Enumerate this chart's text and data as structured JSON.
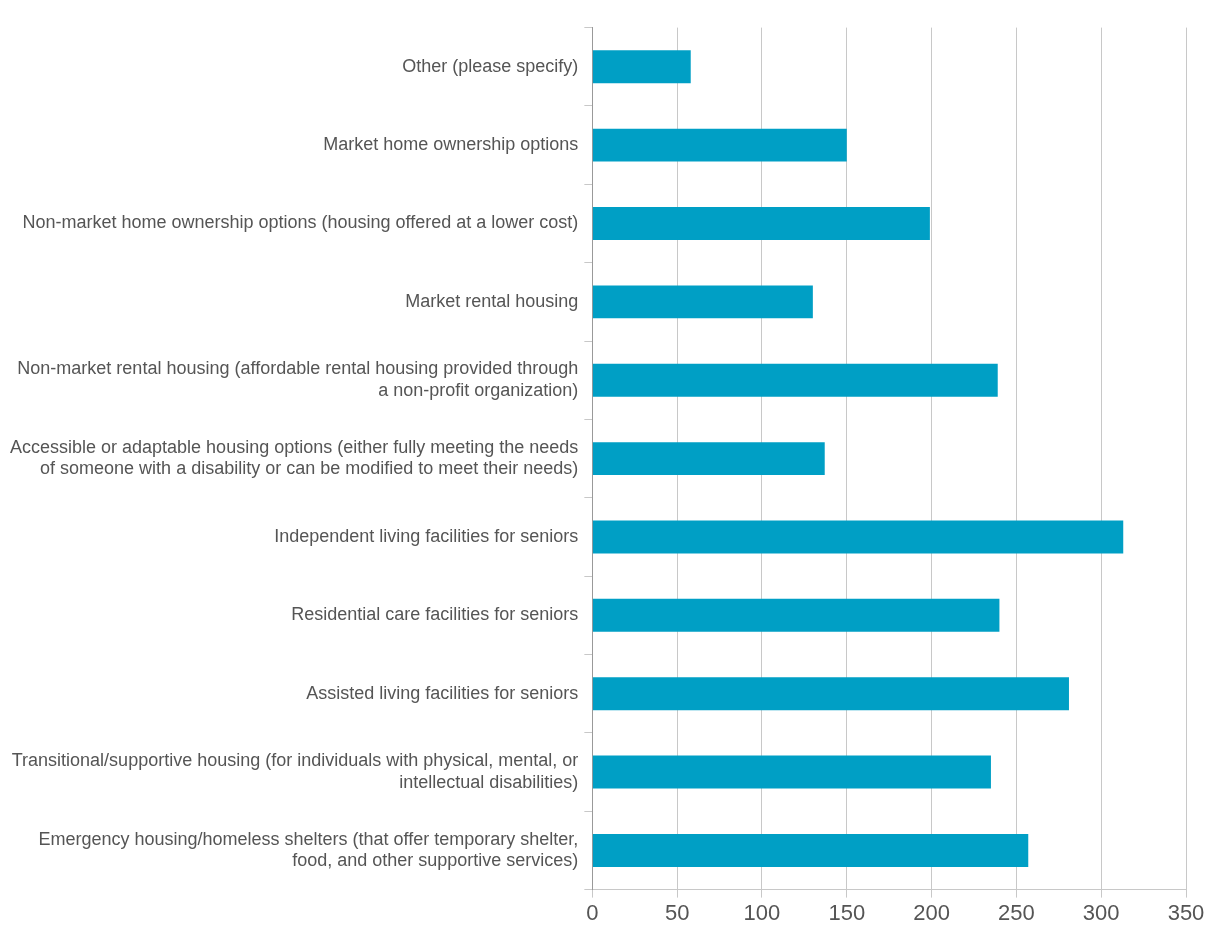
{
  "chart_data": {
    "type": "bar",
    "orientation": "horizontal",
    "categories": [
      "Other (please specify)",
      "Market home ownership options",
      "Non-market home ownership options (housing offered at a lower cost)",
      "Market rental housing",
      "Non-market rental housing (affordable rental housing provided through a non-profit organization)",
      "Accessible or adaptable housing options (either fully meeting the needs of someone with a disability or can be modified to meet their needs)",
      "Independent living facilities for seniors",
      "Residential care facilities for seniors",
      "Assisted living facilities for seniors",
      "Transitional/supportive housing (for individuals with physical, mental, or intellectual disabilities)",
      "Emergency housing/homeless shelters (that offer temporary shelter, food, and other supportive services)"
    ],
    "values": [
      58,
      150,
      199,
      130,
      239,
      137,
      313,
      240,
      281,
      235,
      257
    ],
    "color": "#009fc5",
    "xlim": [
      0,
      350
    ],
    "xticks": [
      0,
      50,
      100,
      150,
      200,
      250,
      300,
      350
    ],
    "grid": "x",
    "legend": false
  }
}
